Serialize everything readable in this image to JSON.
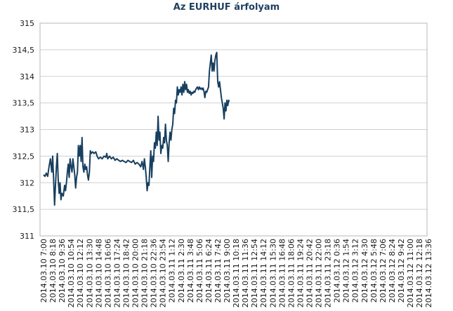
{
  "chart_data": {
    "type": "line",
    "title": "Az EURHUF árfolyam",
    "xlabel": "",
    "ylabel": "",
    "ylim": [
      311,
      315
    ],
    "yticks": [
      "315",
      "314,5",
      "314",
      "313,5",
      "313",
      "312,5",
      "312",
      "311,5",
      "311"
    ],
    "ytick_values": [
      315,
      314.5,
      314,
      313.5,
      313,
      312.5,
      312,
      311.5,
      311
    ],
    "grid": true,
    "legend": "none",
    "line_color": "#173f5f",
    "xticks": [
      "2014.03.10 7:00",
      "2014.03.10 8:18",
      "2014.03.10 9:36",
      "2014.03.10 10:54",
      "2014.03.10 12:12",
      "2014.03.10 13:30",
      "2014.03.10 14:48",
      "2014.03.10 16:06",
      "2014.03.10 17:24",
      "2014.03.10 18:42",
      "2014.03.10 20:00",
      "2014.03.10 21:18",
      "2014.03.10 22:36",
      "2014.03.10 23:54",
      "2014.03.11 1:12",
      "2014.03.11 2:30",
      "2014.03.11 3:48",
      "2014.03.11 5:06",
      "2014.03.11 6:24",
      "2014.03.11 7:42",
      "2014.03.11 9:00",
      "2014.03.11 10:18",
      "2014.03.11 11:36",
      "2014.03.11 12:54",
      "2014.03.11 14:12",
      "2014.03.11 15:30",
      "2014.03.11 16:48",
      "2014.03.11 18:06",
      "2014.03.11 19:24",
      "2014.03.11 20:42",
      "2014.03.11 22:00",
      "2014.03.11 23:18",
      "2014.03.12 0:36",
      "2014.03.12 1:54",
      "2014.03.12 3:12",
      "2014.03.12 4:30",
      "2014.03.12 5:48",
      "2014.03.12 7:06",
      "2014.03.12 8:24",
      "2014.03.12 9:42",
      "2014.03.12 11:00",
      "2014.03.12 12:18",
      "2014.03.12 13:36"
    ],
    "points": [
      [
        0,
        312.15
      ],
      [
        0.15,
        312.12
      ],
      [
        0.3,
        312.18
      ],
      [
        0.45,
        312.12
      ],
      [
        0.6,
        312.3
      ],
      [
        0.75,
        312.45
      ],
      [
        0.9,
        312.2
      ],
      [
        1.0,
        312.5
      ],
      [
        1.1,
        312.05
      ],
      [
        1.2,
        311.58
      ],
      [
        1.3,
        311.95
      ],
      [
        1.4,
        312.3
      ],
      [
        1.5,
        312.55
      ],
      [
        1.6,
        312.05
      ],
      [
        1.7,
        311.8
      ],
      [
        1.8,
        312.0
      ],
      [
        1.9,
        311.68
      ],
      [
        2.0,
        311.8
      ],
      [
        2.15,
        311.75
      ],
      [
        2.3,
        311.95
      ],
      [
        2.4,
        311.85
      ],
      [
        2.5,
        312.0
      ],
      [
        2.6,
        312.2
      ],
      [
        2.7,
        312.35
      ],
      [
        2.8,
        312.1
      ],
      [
        2.9,
        312.45
      ],
      [
        3.0,
        312.3
      ],
      [
        3.1,
        312.2
      ],
      [
        3.2,
        312.45
      ],
      [
        3.3,
        312.3
      ],
      [
        3.4,
        312.15
      ],
      [
        3.5,
        311.9
      ],
      [
        3.6,
        312.1
      ],
      [
        3.7,
        312.2
      ],
      [
        3.8,
        312.7
      ],
      [
        3.9,
        312.5
      ],
      [
        4.0,
        312.7
      ],
      [
        4.1,
        312.4
      ],
      [
        4.2,
        312.85
      ],
      [
        4.3,
        312.3
      ],
      [
        4.4,
        312.2
      ],
      [
        4.5,
        312.35
      ],
      [
        4.6,
        312.25
      ],
      [
        4.7,
        312.3
      ],
      [
        4.8,
        312.15
      ],
      [
        4.9,
        312.05
      ],
      [
        5.0,
        312.2
      ],
      [
        5.1,
        312.6
      ],
      [
        5.2,
        312.55
      ],
      [
        5.35,
        312.58
      ],
      [
        5.5,
        312.55
      ],
      [
        5.7,
        312.58
      ],
      [
        5.85,
        312.5
      ],
      [
        6.0,
        312.45
      ],
      [
        6.2,
        312.48
      ],
      [
        6.4,
        312.45
      ],
      [
        6.6,
        312.5
      ],
      [
        6.8,
        312.48
      ],
      [
        6.9,
        312.55
      ],
      [
        7.0,
        312.45
      ],
      [
        7.2,
        312.5
      ],
      [
        7.4,
        312.45
      ],
      [
        7.6,
        312.48
      ],
      [
        7.8,
        312.42
      ],
      [
        8.0,
        312.45
      ],
      [
        8.2,
        312.42
      ],
      [
        8.4,
        312.4
      ],
      [
        8.6,
        312.42
      ],
      [
        8.8,
        312.4
      ],
      [
        9.0,
        312.38
      ],
      [
        9.2,
        312.42
      ],
      [
        9.4,
        312.4
      ],
      [
        9.6,
        312.38
      ],
      [
        9.8,
        312.42
      ],
      [
        10.0,
        312.35
      ],
      [
        10.2,
        312.38
      ],
      [
        10.4,
        312.35
      ],
      [
        10.6,
        312.3
      ],
      [
        10.75,
        312.4
      ],
      [
        10.9,
        312.25
      ],
      [
        11.0,
        312.45
      ],
      [
        11.1,
        312.3
      ],
      [
        11.2,
        312.1
      ],
      [
        11.3,
        311.85
      ],
      [
        11.4,
        312.0
      ],
      [
        11.5,
        311.95
      ],
      [
        11.6,
        312.3
      ],
      [
        11.7,
        312.6
      ],
      [
        11.8,
        312.1
      ],
      [
        11.9,
        312.5
      ],
      [
        12.0,
        312.4
      ],
      [
        12.1,
        312.75
      ],
      [
        12.2,
        312.65
      ],
      [
        12.3,
        312.95
      ],
      [
        12.4,
        312.7
      ],
      [
        12.5,
        313.25
      ],
      [
        12.6,
        312.8
      ],
      [
        12.7,
        312.95
      ],
      [
        12.8,
        312.55
      ],
      [
        12.9,
        312.7
      ],
      [
        13.0,
        312.65
      ],
      [
        13.1,
        312.85
      ],
      [
        13.2,
        312.75
      ],
      [
        13.3,
        313.1
      ],
      [
        13.4,
        312.8
      ],
      [
        13.5,
        312.7
      ],
      [
        13.6,
        312.4
      ],
      [
        13.7,
        312.75
      ],
      [
        13.8,
        312.95
      ],
      [
        13.9,
        312.8
      ],
      [
        14.0,
        313.0
      ],
      [
        14.1,
        313.1
      ],
      [
        14.2,
        313.4
      ],
      [
        14.3,
        313.3
      ],
      [
        14.4,
        313.55
      ],
      [
        14.5,
        313.5
      ],
      [
        14.6,
        313.8
      ],
      [
        14.7,
        313.65
      ],
      [
        14.8,
        313.75
      ],
      [
        14.9,
        313.7
      ],
      [
        15.0,
        313.8
      ],
      [
        15.1,
        313.65
      ],
      [
        15.2,
        313.85
      ],
      [
        15.3,
        313.7
      ],
      [
        15.4,
        313.9
      ],
      [
        15.5,
        313.75
      ],
      [
        15.6,
        313.85
      ],
      [
        15.7,
        313.7
      ],
      [
        15.8,
        313.75
      ],
      [
        15.9,
        313.68
      ],
      [
        16.0,
        313.72
      ],
      [
        16.1,
        313.65
      ],
      [
        16.2,
        313.7
      ],
      [
        16.3,
        313.68
      ],
      [
        16.4,
        313.72
      ],
      [
        16.5,
        313.7
      ],
      [
        16.6,
        313.75
      ],
      [
        16.7,
        313.78
      ],
      [
        16.8,
        313.8
      ],
      [
        16.9,
        313.75
      ],
      [
        17.0,
        313.8
      ],
      [
        17.1,
        313.76
      ],
      [
        17.2,
        313.78
      ],
      [
        17.3,
        313.75
      ],
      [
        17.4,
        313.78
      ],
      [
        17.5,
        313.72
      ],
      [
        17.6,
        313.6
      ],
      [
        17.7,
        313.72
      ],
      [
        17.8,
        313.7
      ],
      [
        17.9,
        313.75
      ],
      [
        18.0,
        313.8
      ],
      [
        18.1,
        314.1
      ],
      [
        18.2,
        314.25
      ],
      [
        18.3,
        314.4
      ],
      [
        18.4,
        314.1
      ],
      [
        18.5,
        314.25
      ],
      [
        18.6,
        314.1
      ],
      [
        18.7,
        314.3
      ],
      [
        18.8,
        314.4
      ],
      [
        18.9,
        314.45
      ],
      [
        19.0,
        313.9
      ],
      [
        19.1,
        313.8
      ],
      [
        19.2,
        313.9
      ],
      [
        19.3,
        313.75
      ],
      [
        19.4,
        313.6
      ],
      [
        19.5,
        313.5
      ],
      [
        19.6,
        313.4
      ],
      [
        19.7,
        313.2
      ],
      [
        19.8,
        313.5
      ],
      [
        19.9,
        313.35
      ],
      [
        20.0,
        313.55
      ],
      [
        20.1,
        313.45
      ],
      [
        20.2,
        313.55
      ],
      [
        20.25,
        313.52
      ]
    ]
  }
}
